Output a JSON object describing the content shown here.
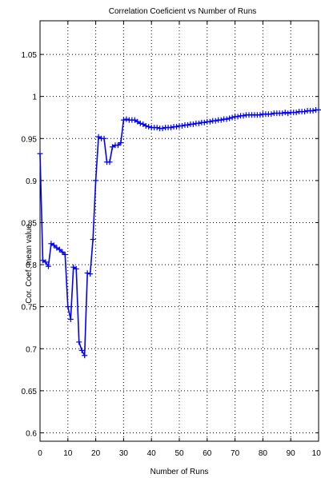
{
  "chart_data": {
    "type": "line",
    "title": "Correlation Coeficient vs Number of Runs",
    "xlabel": "Number of Runs",
    "ylabel": "Cor. Coef. mean value",
    "xlim": [
      0,
      100
    ],
    "ylim": [
      0.59,
      1.09
    ],
    "grid": true,
    "x_ticks": [
      0,
      10,
      20,
      30,
      40,
      50,
      60,
      70,
      80,
      90,
      100
    ],
    "x_tick_labels": [
      "0",
      "10",
      "20",
      "30",
      "40",
      "50",
      "60",
      "70",
      "80",
      "90",
      "100"
    ],
    "y_ticks": [
      0.6,
      0.65,
      0.7,
      0.75,
      0.8,
      0.85,
      0.9,
      0.95,
      1.0,
      1.05
    ],
    "y_tick_labels": [
      "0.6",
      "0.65",
      "0.7",
      "0.75",
      "0.8",
      "0.85",
      "0.9",
      "0.95",
      "1",
      "1.05"
    ],
    "series": [
      {
        "color": "#0000ff",
        "marker": "plus",
        "x": [
          0,
          1,
          2,
          3,
          4,
          5,
          6,
          7,
          8,
          9,
          10,
          11,
          12,
          13,
          14,
          15,
          16,
          17,
          18,
          19,
          20,
          21,
          22,
          23,
          24,
          25,
          26,
          27,
          28,
          29,
          30,
          31,
          32,
          33,
          34,
          35,
          36,
          37,
          38,
          39,
          40,
          41,
          42,
          43,
          44,
          45,
          46,
          47,
          48,
          49,
          50,
          51,
          52,
          53,
          54,
          55,
          56,
          57,
          58,
          59,
          60,
          61,
          62,
          63,
          64,
          65,
          66,
          67,
          68,
          69,
          70,
          71,
          72,
          73,
          74,
          75,
          76,
          77,
          78,
          79,
          80,
          81,
          82,
          83,
          84,
          85,
          86,
          87,
          88,
          89,
          90,
          91,
          92,
          93,
          94,
          95,
          96,
          97,
          98,
          99,
          100
        ],
        "y": [
          0.932,
          0.805,
          0.803,
          0.798,
          0.825,
          0.823,
          0.82,
          0.818,
          0.815,
          0.812,
          0.75,
          0.735,
          0.797,
          0.795,
          0.708,
          0.698,
          0.692,
          0.79,
          0.789,
          0.83,
          0.9,
          0.952,
          0.95,
          0.95,
          0.922,
          0.922,
          0.94,
          0.942,
          0.942,
          0.945,
          0.972,
          0.973,
          0.972,
          0.972,
          0.972,
          0.97,
          0.968,
          0.967,
          0.965,
          0.964,
          0.963,
          0.963,
          0.963,
          0.962,
          0.962,
          0.963,
          0.963,
          0.963,
          0.964,
          0.964,
          0.965,
          0.965,
          0.966,
          0.966,
          0.967,
          0.967,
          0.968,
          0.968,
          0.969,
          0.969,
          0.97,
          0.97,
          0.971,
          0.971,
          0.972,
          0.972,
          0.973,
          0.973,
          0.974,
          0.975,
          0.976,
          0.976,
          0.977,
          0.977,
          0.978,
          0.978,
          0.978,
          0.978,
          0.978,
          0.978,
          0.979,
          0.979,
          0.979,
          0.979,
          0.98,
          0.98,
          0.98,
          0.98,
          0.981,
          0.98,
          0.981,
          0.981,
          0.981,
          0.982,
          0.982,
          0.982,
          0.983,
          0.983,
          0.983,
          0.984,
          0.984
        ]
      }
    ]
  }
}
